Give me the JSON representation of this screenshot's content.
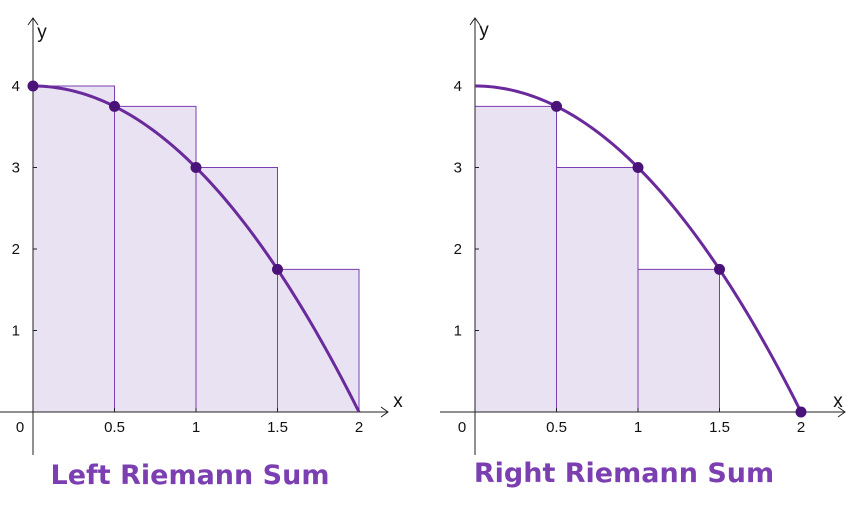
{
  "colors": {
    "curve": "#6a2a9c",
    "point": "#4a137a",
    "rect_fill": "#e9e2f3",
    "rect_stroke": "#7a3fb0",
    "title": "#7b3fb1"
  },
  "chart_data": [
    {
      "type": "line",
      "title": "Left Riemann Sum",
      "xlabel": "x",
      "ylabel": "y",
      "xlim": [
        0,
        2
      ],
      "ylim": [
        0,
        4
      ],
      "x_ticks": [
        "0.5",
        "1",
        "1.5",
        "2"
      ],
      "y_ticks": [
        "1",
        "2",
        "3",
        "4"
      ],
      "origin_label": "0",
      "function": "y = 4 - x^2",
      "rectangles": [
        {
          "x0": 0,
          "x1": 0.5,
          "height": 4
        },
        {
          "x0": 0.5,
          "x1": 1,
          "height": 3.75
        },
        {
          "x0": 1,
          "x1": 1.5,
          "height": 3
        },
        {
          "x0": 1.5,
          "x1": 2,
          "height": 1.75
        }
      ],
      "points": [
        {
          "x": 0,
          "y": 4
        },
        {
          "x": 0.5,
          "y": 3.75
        },
        {
          "x": 1,
          "y": 3
        },
        {
          "x": 1.5,
          "y": 1.75
        }
      ]
    },
    {
      "type": "line",
      "title": "Right Riemann Sum",
      "xlabel": "x",
      "ylabel": "y",
      "xlim": [
        0,
        2
      ],
      "ylim": [
        0,
        4
      ],
      "x_ticks": [
        "0.5",
        "1",
        "1.5",
        "2"
      ],
      "y_ticks": [
        "1",
        "2",
        "3",
        "4"
      ],
      "origin_label": "0",
      "function": "y = 4 - x^2",
      "rectangles": [
        {
          "x0": 0,
          "x1": 0.5,
          "height": 3.75
        },
        {
          "x0": 0.5,
          "x1": 1,
          "height": 3
        },
        {
          "x0": 1,
          "x1": 1.5,
          "height": 1.75
        },
        {
          "x0": 1.5,
          "x1": 2,
          "height": 0
        }
      ],
      "points": [
        {
          "x": 0.5,
          "y": 3.75
        },
        {
          "x": 1,
          "y": 3
        },
        {
          "x": 1.5,
          "y": 1.75
        },
        {
          "x": 2,
          "y": 0
        }
      ]
    }
  ]
}
